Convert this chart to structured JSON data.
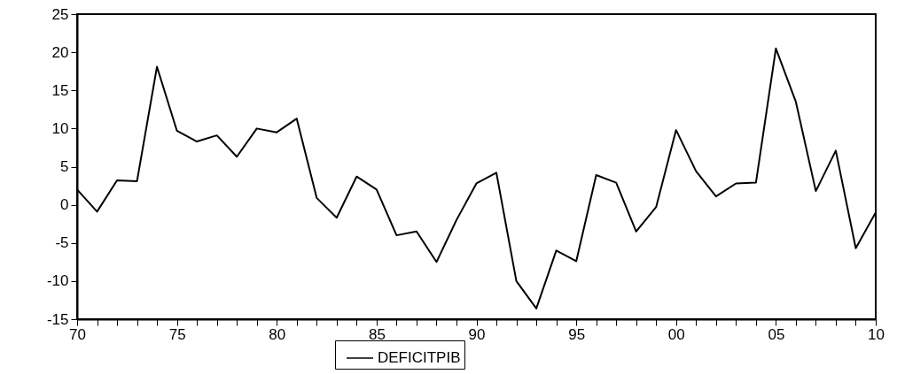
{
  "chart_data": {
    "type": "line",
    "x": [
      1970,
      1971,
      1972,
      1973,
      1974,
      1975,
      1976,
      1977,
      1978,
      1979,
      1980,
      1981,
      1982,
      1983,
      1984,
      1985,
      1986,
      1987,
      1988,
      1989,
      1990,
      1991,
      1992,
      1993,
      1994,
      1995,
      1996,
      1997,
      1998,
      1999,
      2000,
      2001,
      2002,
      2003,
      2004,
      2005,
      2006,
      2007,
      2008,
      2009,
      2010
    ],
    "series": [
      {
        "name": "DEFICITPIB",
        "color": "#000000",
        "values": [
          2.0,
          -0.9,
          3.2,
          3.1,
          18.1,
          9.7,
          8.3,
          9.1,
          6.3,
          10.0,
          9.5,
          11.3,
          0.9,
          -1.7,
          3.7,
          2.0,
          -4.0,
          -3.5,
          -7.5,
          -2.0,
          2.8,
          4.2,
          -10.0,
          -13.6,
          -6.0,
          -7.4,
          3.9,
          2.9,
          -3.5,
          -0.3,
          9.8,
          4.4,
          1.1,
          2.8,
          2.9,
          20.5,
          13.5,
          1.8,
          7.1,
          -5.7,
          -1.0
        ]
      }
    ],
    "xlim": [
      1970,
      2010
    ],
    "xticks": [
      {
        "value": 1970,
        "label": "70"
      },
      {
        "value": 1971,
        "label": null
      },
      {
        "value": 1972,
        "label": null
      },
      {
        "value": 1973,
        "label": null
      },
      {
        "value": 1974,
        "label": null
      },
      {
        "value": 1975,
        "label": "75"
      },
      {
        "value": 1976,
        "label": null
      },
      {
        "value": 1977,
        "label": null
      },
      {
        "value": 1978,
        "label": null
      },
      {
        "value": 1979,
        "label": null
      },
      {
        "value": 1980,
        "label": "80"
      },
      {
        "value": 1981,
        "label": null
      },
      {
        "value": 1982,
        "label": null
      },
      {
        "value": 1983,
        "label": null
      },
      {
        "value": 1984,
        "label": null
      },
      {
        "value": 1985,
        "label": "85"
      },
      {
        "value": 1986,
        "label": null
      },
      {
        "value": 1987,
        "label": null
      },
      {
        "value": 1988,
        "label": null
      },
      {
        "value": 1989,
        "label": null
      },
      {
        "value": 1990,
        "label": "90"
      },
      {
        "value": 1991,
        "label": null
      },
      {
        "value": 1992,
        "label": null
      },
      {
        "value": 1993,
        "label": null
      },
      {
        "value": 1994,
        "label": null
      },
      {
        "value": 1995,
        "label": "95"
      },
      {
        "value": 1996,
        "label": null
      },
      {
        "value": 1997,
        "label": null
      },
      {
        "value": 1998,
        "label": null
      },
      {
        "value": 1999,
        "label": null
      },
      {
        "value": 2000,
        "label": "00"
      },
      {
        "value": 2001,
        "label": null
      },
      {
        "value": 2002,
        "label": null
      },
      {
        "value": 2003,
        "label": null
      },
      {
        "value": 2004,
        "label": null
      },
      {
        "value": 2005,
        "label": "05"
      },
      {
        "value": 2006,
        "label": null
      },
      {
        "value": 2007,
        "label": null
      },
      {
        "value": 2008,
        "label": null
      },
      {
        "value": 2009,
        "label": null
      },
      {
        "value": 2010,
        "label": "10"
      }
    ],
    "ylim": [
      -15,
      25
    ],
    "yticks": [
      -15,
      -10,
      -5,
      0,
      5,
      10,
      15,
      20,
      25
    ],
    "grid": false,
    "legend": "bottom",
    "marker": "none",
    "line_style": "solid"
  }
}
